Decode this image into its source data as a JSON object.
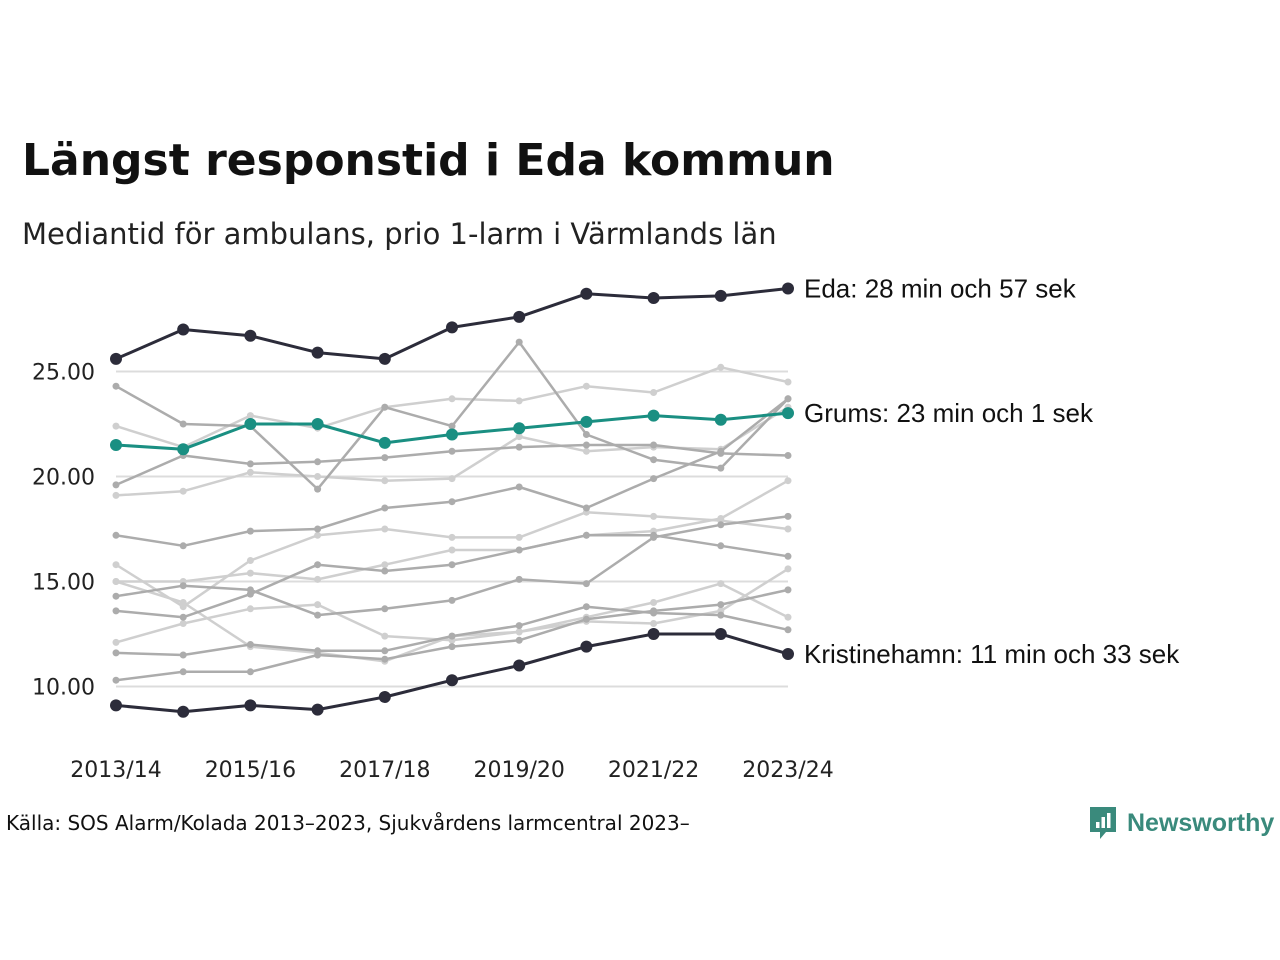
{
  "header": {
    "title": "Längst responstid i Eda kommun",
    "subtitle": "Mediantid för ambulans, prio 1-larm i Värmlands län"
  },
  "footer": {
    "source": "Källa: SOS Alarm/Kolada 2013–2023, Sjukvårdens larmcentral 2023–",
    "brand": "Newsworthy",
    "brand_icon": "newsworthy-logo-icon",
    "brand_color": "#3a8a7c"
  },
  "chart_data": {
    "type": "line",
    "title": "Längst responstid i Eda kommun",
    "subtitle": "Mediantid för ambulans, prio 1-larm i Värmlands län",
    "xlabel": "",
    "ylabel": "",
    "x_ticks": [
      "2013/14",
      "2015/16",
      "2017/18",
      "2019/20",
      "2021/22",
      "2023/24"
    ],
    "x": [
      "2013/14",
      "2014/15",
      "2015/16",
      "2016/17",
      "2017/18",
      "2018/19",
      "2019/20",
      "2020/21",
      "2021/22",
      "2022/23",
      "2023/24"
    ],
    "y_ticks": [
      "10.00",
      "15.00",
      "20.00",
      "25.00"
    ],
    "ylim": [
      8.5,
      29.5
    ],
    "grid": "horizontal",
    "highlight_color": "#1a8f82",
    "dark_color": "#2c2c3a",
    "series": [
      {
        "name": "Eda",
        "label": "Eda: 28 min och 57 sek",
        "role": "dark",
        "values": [
          25.6,
          27.0,
          26.7,
          25.9,
          25.6,
          27.1,
          27.6,
          28.7,
          28.5,
          28.6,
          28.95
        ]
      },
      {
        "name": "Grums",
        "label": "Grums: 23 min och 1 sek",
        "role": "highlight",
        "values": [
          21.5,
          21.3,
          22.5,
          22.5,
          21.6,
          22.0,
          22.3,
          22.6,
          22.9,
          22.7,
          23.02
        ]
      },
      {
        "name": "Kristinehamn",
        "label": "Kristinehamn: 11 min och 33 sek",
        "role": "dark",
        "values": [
          9.1,
          8.8,
          9.1,
          8.9,
          9.5,
          10.3,
          11.0,
          11.9,
          12.5,
          12.5,
          11.55
        ]
      },
      {
        "role": "gray",
        "values": [
          24.3,
          22.5,
          22.4,
          19.4,
          23.3,
          22.4,
          26.4,
          22.0,
          20.8,
          20.4,
          23.7
        ]
      },
      {
        "role": "light",
        "values": [
          22.4,
          21.4,
          22.9,
          22.3,
          23.3,
          23.7,
          23.6,
          24.3,
          24.0,
          25.2,
          24.5
        ]
      },
      {
        "role": "gray",
        "values": [
          19.6,
          21.0,
          20.6,
          20.7,
          20.9,
          21.2,
          21.4,
          21.5,
          21.5,
          21.1,
          21.0
        ]
      },
      {
        "role": "light",
        "values": [
          19.1,
          19.3,
          20.2,
          20.0,
          19.8,
          19.9,
          21.9,
          21.2,
          21.4,
          21.3,
          23.3
        ]
      },
      {
        "role": "gray",
        "values": [
          17.2,
          16.7,
          17.4,
          17.5,
          18.5,
          18.8,
          19.5,
          18.5,
          19.9,
          21.2,
          23.7
        ]
      },
      {
        "role": "light",
        "values": [
          15.8,
          13.8,
          16.0,
          17.2,
          17.5,
          17.1,
          17.1,
          18.3,
          18.1,
          17.9,
          17.5
        ]
      },
      {
        "role": "gray",
        "values": [
          14.3,
          14.8,
          14.6,
          13.4,
          13.7,
          14.1,
          15.1,
          14.9,
          17.1,
          17.7,
          18.1
        ]
      },
      {
        "role": "gray",
        "values": [
          13.6,
          13.3,
          14.4,
          15.8,
          15.5,
          15.8,
          16.5,
          17.2,
          17.2,
          16.7,
          16.2
        ]
      },
      {
        "role": "light",
        "values": [
          15.0,
          15.0,
          15.4,
          15.1,
          15.8,
          16.5,
          16.5,
          17.2,
          17.4,
          18.0,
          19.8
        ]
      },
      {
        "role": "light",
        "values": [
          12.1,
          13.0,
          13.7,
          13.9,
          12.4,
          12.2,
          12.6,
          13.1,
          13.0,
          13.6,
          15.6
        ]
      },
      {
        "role": "gray",
        "values": [
          11.6,
          11.5,
          12.0,
          11.7,
          11.7,
          12.4,
          12.9,
          13.8,
          13.5,
          13.4,
          12.7
        ]
      },
      {
        "role": "gray",
        "values": [
          10.3,
          10.7,
          10.7,
          11.5,
          11.3,
          11.9,
          12.2,
          13.2,
          13.6,
          13.9,
          14.6
        ]
      },
      {
        "role": "light",
        "values": [
          15.0,
          14.0,
          11.9,
          11.6,
          11.2,
          12.4,
          12.6,
          13.3,
          14.0,
          14.9,
          13.3
        ]
      }
    ]
  }
}
